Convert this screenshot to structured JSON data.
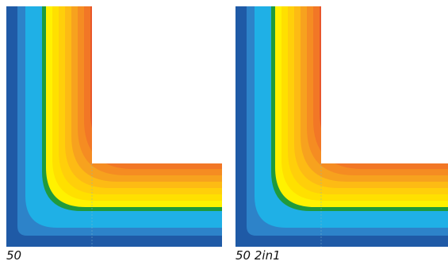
{
  "panels": [
    {
      "caption": "50"
    },
    {
      "caption": "50 2in1"
    }
  ],
  "palette": {
    "cold_dark": "#1f5aa6",
    "cold_mid": "#2d83c9",
    "cold_light": "#1fb0e6",
    "boundary": "#1f9a3c",
    "warm_yellow": "#fff200",
    "warm_orange": "#f7a21e",
    "warm_red": "#e8562a",
    "seam": "#7fb7c9"
  }
}
